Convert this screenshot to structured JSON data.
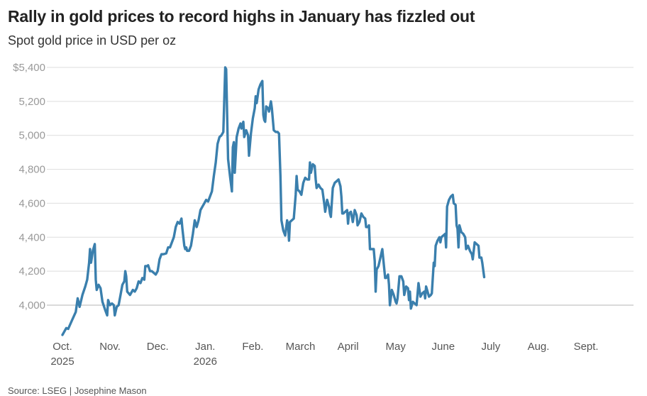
{
  "chart_data": {
    "type": "line",
    "title": "Rally in gold prices to record highs in January has fizzled out",
    "subtitle": "Spot gold price in USD per oz",
    "source": "Source: LSEG | Josephine Mason",
    "ylim": [
      3800,
      5400
    ],
    "y_ticks": [
      {
        "value": 4000,
        "label": "4,000"
      },
      {
        "value": 4200,
        "label": "4,200"
      },
      {
        "value": 4400,
        "label": "4,400"
      },
      {
        "value": 4600,
        "label": "4,600"
      },
      {
        "value": 4800,
        "label": "4,800"
      },
      {
        "value": 5000,
        "label": "5,000"
      },
      {
        "value": 5200,
        "label": "5,200"
      },
      {
        "value": 5400,
        "label": "$5,400"
      }
    ],
    "x_ticks": [
      {
        "month": 0,
        "label": "Oct.",
        "year": "2025"
      },
      {
        "month": 1,
        "label": "Nov.",
        "year": ""
      },
      {
        "month": 2,
        "label": "Dec.",
        "year": ""
      },
      {
        "month": 3,
        "label": "Jan.",
        "year": "2026"
      },
      {
        "month": 4,
        "label": "Feb.",
        "year": ""
      },
      {
        "month": 5,
        "label": "March",
        "year": ""
      },
      {
        "month": 6,
        "label": "April",
        "year": ""
      },
      {
        "month": 7,
        "label": "May",
        "year": ""
      },
      {
        "month": 8,
        "label": "June",
        "year": ""
      },
      {
        "month": 9,
        "label": "July",
        "year": ""
      },
      {
        "month": 10,
        "label": "Aug.",
        "year": ""
      },
      {
        "month": 11,
        "label": "Sept.",
        "year": ""
      }
    ],
    "grid": true,
    "series": [
      {
        "color": "#3a7fad",
        "points": [
          [
            0.0,
            3825
          ],
          [
            0.08,
            3865
          ],
          [
            0.12,
            3860
          ],
          [
            0.2,
            3910
          ],
          [
            0.28,
            3960
          ],
          [
            0.32,
            4040
          ],
          [
            0.36,
            3990
          ],
          [
            0.42,
            4060
          ],
          [
            0.48,
            4110
          ],
          [
            0.52,
            4150
          ],
          [
            0.56,
            4250
          ],
          [
            0.58,
            4330
          ],
          [
            0.6,
            4250
          ],
          [
            0.64,
            4320
          ],
          [
            0.68,
            4360
          ],
          [
            0.7,
            4150
          ],
          [
            0.72,
            4090
          ],
          [
            0.76,
            4120
          ],
          [
            0.8,
            4100
          ],
          [
            0.84,
            4020
          ],
          [
            0.9,
            3970
          ],
          [
            0.94,
            3940
          ],
          [
            0.96,
            4030
          ],
          [
            1.0,
            4000
          ],
          [
            1.04,
            4010
          ],
          [
            1.08,
            4000
          ],
          [
            1.1,
            3940
          ],
          [
            1.14,
            3990
          ],
          [
            1.18,
            4000
          ],
          [
            1.22,
            4060
          ],
          [
            1.26,
            4120
          ],
          [
            1.3,
            4140
          ],
          [
            1.32,
            4200
          ],
          [
            1.34,
            4170
          ],
          [
            1.36,
            4080
          ],
          [
            1.42,
            4060
          ],
          [
            1.48,
            4090
          ],
          [
            1.52,
            4080
          ],
          [
            1.56,
            4100
          ],
          [
            1.6,
            4140
          ],
          [
            1.64,
            4130
          ],
          [
            1.68,
            4160
          ],
          [
            1.72,
            4150
          ],
          [
            1.74,
            4230
          ],
          [
            1.78,
            4230
          ],
          [
            1.8,
            4235
          ],
          [
            1.84,
            4200
          ],
          [
            1.88,
            4200
          ],
          [
            1.92,
            4190
          ],
          [
            1.96,
            4180
          ],
          [
            2.0,
            4200
          ],
          [
            2.04,
            4270
          ],
          [
            2.08,
            4300
          ],
          [
            2.12,
            4300
          ],
          [
            2.18,
            4305
          ],
          [
            2.22,
            4340
          ],
          [
            2.26,
            4340
          ],
          [
            2.3,
            4370
          ],
          [
            2.34,
            4400
          ],
          [
            2.38,
            4460
          ],
          [
            2.42,
            4490
          ],
          [
            2.46,
            4480
          ],
          [
            2.5,
            4510
          ],
          [
            2.52,
            4450
          ],
          [
            2.56,
            4350
          ],
          [
            2.58,
            4330
          ],
          [
            2.6,
            4340
          ],
          [
            2.62,
            4320
          ],
          [
            2.66,
            4320
          ],
          [
            2.7,
            4350
          ],
          [
            2.74,
            4420
          ],
          [
            2.78,
            4500
          ],
          [
            2.82,
            4460
          ],
          [
            2.86,
            4500
          ],
          [
            2.9,
            4560
          ],
          [
            2.94,
            4580
          ],
          [
            2.98,
            4600
          ],
          [
            3.02,
            4620
          ],
          [
            3.06,
            4610
          ],
          [
            3.1,
            4640
          ],
          [
            3.14,
            4670
          ],
          [
            3.18,
            4760
          ],
          [
            3.22,
            4840
          ],
          [
            3.26,
            4950
          ],
          [
            3.3,
            4990
          ],
          [
            3.34,
            5000
          ],
          [
            3.38,
            5020
          ],
          [
            3.42,
            5400
          ],
          [
            3.44,
            5390
          ],
          [
            3.48,
            4860
          ],
          [
            3.52,
            4760
          ],
          [
            3.56,
            4670
          ],
          [
            3.58,
            4930
          ],
          [
            3.6,
            4960
          ],
          [
            3.62,
            4780
          ],
          [
            3.66,
            4990
          ],
          [
            3.7,
            5040
          ],
          [
            3.74,
            5070
          ],
          [
            3.76,
            5040
          ],
          [
            3.8,
            5080
          ],
          [
            3.82,
            4990
          ],
          [
            3.86,
            5030
          ],
          [
            3.9,
            5000
          ],
          [
            3.92,
            4880
          ],
          [
            3.96,
            5010
          ],
          [
            4.0,
            5100
          ],
          [
            4.04,
            5160
          ],
          [
            4.06,
            5230
          ],
          [
            4.08,
            5190
          ],
          [
            4.12,
            5270
          ],
          [
            4.16,
            5300
          ],
          [
            4.2,
            5320
          ],
          [
            4.22,
            5120
          ],
          [
            4.24,
            5090
          ],
          [
            4.26,
            5080
          ],
          [
            4.28,
            5170
          ],
          [
            4.32,
            5160
          ],
          [
            4.34,
            5140
          ],
          [
            4.38,
            5200
          ],
          [
            4.4,
            5160
          ],
          [
            4.44,
            5030
          ],
          [
            4.48,
            5020
          ],
          [
            4.52,
            5020
          ],
          [
            4.55,
            5010
          ],
          [
            4.58,
            4760
          ],
          [
            4.6,
            4500
          ],
          [
            4.64,
            4440
          ],
          [
            4.68,
            4410
          ],
          [
            4.72,
            4500
          ],
          [
            4.74,
            4470
          ],
          [
            4.76,
            4380
          ],
          [
            4.78,
            4490
          ],
          [
            4.82,
            4500
          ],
          [
            4.86,
            4510
          ],
          [
            4.9,
            4650
          ],
          [
            4.92,
            4760
          ],
          [
            4.94,
            4680
          ],
          [
            4.98,
            4670
          ],
          [
            5.02,
            4650
          ],
          [
            5.06,
            4720
          ],
          [
            5.1,
            4750
          ],
          [
            5.14,
            4740
          ],
          [
            5.18,
            4740
          ],
          [
            5.2,
            4840
          ],
          [
            5.22,
            4780
          ],
          [
            5.26,
            4830
          ],
          [
            5.3,
            4820
          ],
          [
            5.32,
            4740
          ],
          [
            5.34,
            4690
          ],
          [
            5.38,
            4710
          ],
          [
            5.42,
            4690
          ],
          [
            5.46,
            4680
          ],
          [
            5.5,
            4600
          ],
          [
            5.52,
            4550
          ],
          [
            5.56,
            4620
          ],
          [
            5.6,
            4580
          ],
          [
            5.62,
            4540
          ],
          [
            5.64,
            4520
          ],
          [
            5.68,
            4690
          ],
          [
            5.72,
            4720
          ],
          [
            5.76,
            4730
          ],
          [
            5.8,
            4740
          ],
          [
            5.84,
            4700
          ],
          [
            5.86,
            4640
          ],
          [
            5.88,
            4540
          ],
          [
            5.9,
            4540
          ],
          [
            5.94,
            4550
          ],
          [
            5.98,
            4560
          ],
          [
            6.0,
            4480
          ],
          [
            6.02,
            4540
          ],
          [
            6.06,
            4550
          ],
          [
            6.1,
            4490
          ],
          [
            6.14,
            4560
          ],
          [
            6.18,
            4530
          ],
          [
            6.2,
            4470
          ],
          [
            6.24,
            4490
          ],
          [
            6.28,
            4540
          ],
          [
            6.32,
            4520
          ],
          [
            6.36,
            4510
          ],
          [
            6.38,
            4460
          ],
          [
            6.42,
            4460
          ],
          [
            6.44,
            4470
          ],
          [
            6.46,
            4330
          ],
          [
            6.5,
            4330
          ],
          [
            6.54,
            4330
          ],
          [
            6.56,
            4260
          ],
          [
            6.58,
            4080
          ],
          [
            6.6,
            4210
          ],
          [
            6.64,
            4230
          ],
          [
            6.68,
            4280
          ],
          [
            6.72,
            4330
          ],
          [
            6.74,
            4270
          ],
          [
            6.78,
            4160
          ],
          [
            6.8,
            4160
          ],
          [
            6.84,
            4180
          ],
          [
            6.86,
            4120
          ],
          [
            6.88,
            4000
          ],
          [
            6.92,
            4090
          ],
          [
            6.96,
            4060
          ],
          [
            7.0,
            4020
          ],
          [
            7.02,
            4010
          ],
          [
            7.04,
            4040
          ],
          [
            7.08,
            4170
          ],
          [
            7.12,
            4170
          ],
          [
            7.16,
            4140
          ],
          [
            7.18,
            4060
          ],
          [
            7.22,
            4110
          ],
          [
            7.26,
            4100
          ],
          [
            7.28,
            4030
          ],
          [
            7.3,
            4080
          ],
          [
            7.32,
            3980
          ],
          [
            7.36,
            4020
          ],
          [
            7.4,
            4010
          ],
          [
            7.44,
            4000
          ],
          [
            7.48,
            4130
          ],
          [
            7.52,
            4050
          ],
          [
            7.56,
            4070
          ],
          [
            7.6,
            4080
          ],
          [
            7.62,
            4040
          ],
          [
            7.64,
            4110
          ],
          [
            7.66,
            4090
          ],
          [
            7.7,
            4050
          ],
          [
            7.74,
            4060
          ],
          [
            7.76,
            4070
          ],
          [
            7.8,
            4250
          ],
          [
            7.82,
            4230
          ],
          [
            7.84,
            4350
          ],
          [
            7.88,
            4380
          ],
          [
            7.92,
            4400
          ],
          [
            7.94,
            4370
          ],
          [
            7.96,
            4400
          ],
          [
            8.0,
            4410
          ],
          [
            8.04,
            4420
          ],
          [
            8.06,
            4340
          ],
          [
            8.08,
            4580
          ],
          [
            8.12,
            4620
          ],
          [
            8.16,
            4640
          ],
          [
            8.2,
            4650
          ],
          [
            8.22,
            4600
          ],
          [
            8.26,
            4590
          ],
          [
            8.28,
            4470
          ],
          [
            8.3,
            4450
          ],
          [
            8.32,
            4340
          ],
          [
            8.34,
            4470
          ],
          [
            8.38,
            4430
          ],
          [
            8.42,
            4420
          ],
          [
            8.46,
            4400
          ],
          [
            8.48,
            4330
          ],
          [
            8.52,
            4350
          ],
          [
            8.56,
            4320
          ],
          [
            8.6,
            4300
          ],
          [
            8.62,
            4270
          ],
          [
            8.66,
            4370
          ],
          [
            8.7,
            4360
          ],
          [
            8.74,
            4350
          ],
          [
            8.76,
            4280
          ],
          [
            8.8,
            4280
          ],
          [
            8.82,
            4250
          ],
          [
            8.86,
            4165
          ]
        ]
      }
    ]
  }
}
